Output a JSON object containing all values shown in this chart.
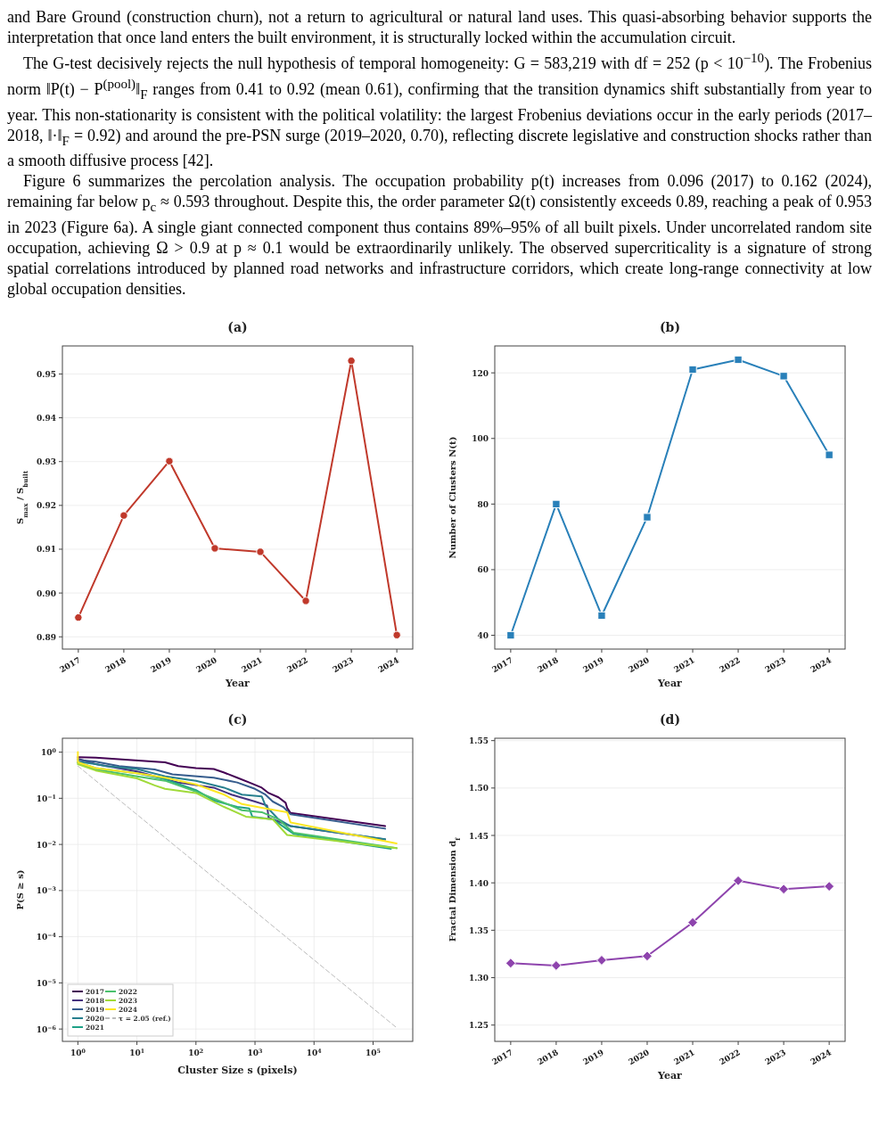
{
  "chart_data": [
    {
      "type": "other",
      "annotations": [
        "and Bare Ground (construction churn), not a return to agricultural or natural land uses. This quasi-absorbing behavior supports the interpretation that once land enters the built environment, it is structurally locked within the accumulation circuit.",
        "The G-test decisively rejects the null hypothesis of temporal homogeneity: G = 583,219 with df = 252 (p < 10$^{−10}$). The Frobenius norm ‖P(t) − P$^{(pool)}$‖$_{F}$ ranges from 0.41 to 0.92 (mean 0.61), confirming that the transition dynamics shift substantially from year to year. This non-stationarity is consistent with the political volatility: the largest Frobenius deviations occur in the early periods (2017–2018, ‖·‖$_{F}$ = 0.92) and around the pre-PSN surge (2019–2020, 0.70), reflecting discrete legislative and construction shocks rather than a smooth diffusive process [42].",
        "Figure 6 summarizes the percolation analysis. The occupation probability p(t) increases from 0.096 (2017) to 0.162 (2024), remaining far below p$_{c}$ ≈ 0.593 throughout. Despite this, the order parameter Ω(t) consistently exceeds 0.89, reaching a peak of 0.953 in 2023 (Figure 6a). A single giant connected component thus contains 89%–95% of all built pixels. Under uncorrelated random site occupation, achieving Ω > 0.9 at p ≈ 0.1 would be extraordinarily unlikely. The observed supercriticality is a signature of strong spatial correlations introduced by planned road networks and infrastructure corridors, which create long-range connectivity at low global occupation densities."
      ]
    },
    {
      "type": "line",
      "title": "(a)",
      "xlabel": "Year",
      "ylabel": "S$_{max}$ / S$_{built}$",
      "categories": [
        "2017",
        "2018",
        "2019",
        "2020",
        "2021",
        "2022",
        "2023",
        "2024"
      ],
      "series": [
        {
          "color": "#c0392b",
          "values": [
            0.8944,
            0.9177,
            0.9301,
            0.9102,
            0.9094,
            0.8982,
            0.953,
            0.8904
          ]
        }
      ],
      "ylim": [
        0.8872,
        0.9564
      ],
      "yticks": [
        {
          "value": 0.89,
          "label": "0.89"
        },
        {
          "value": 0.9,
          "label": "0.90"
        },
        {
          "value": 0.91,
          "label": "0.91"
        },
        {
          "value": 0.92,
          "label": "0.92"
        },
        {
          "value": 0.93,
          "label": "0.93"
        },
        {
          "value": 0.94,
          "label": "0.94"
        },
        {
          "value": 0.95,
          "label": "0.95"
        }
      ],
      "grid": "y",
      "marker": "circle",
      "legend": false
    },
    {
      "type": "line",
      "title": "(b)",
      "xlabel": "Year",
      "ylabel": "Number of Clusters  N(t)",
      "categories": [
        "2017",
        "2018",
        "2019",
        "2020",
        "2021",
        "2022",
        "2023",
        "2024"
      ],
      "series": [
        {
          "color": "#2980b9",
          "values": [
            40,
            80,
            46,
            76,
            121,
            124,
            119,
            95
          ]
        }
      ],
      "ylim": [
        35.8,
        128.2
      ],
      "yticks": [
        40,
        60,
        80,
        100,
        120
      ],
      "grid": "y",
      "marker": "square",
      "legend": false
    },
    {
      "type": "line",
      "title": "(c)",
      "xlabel": "Cluster Size  s  (pixels)",
      "ylabel": "P(S ≥ s)",
      "log": "xy",
      "xlim": [
        0.547,
        470000
      ],
      "ylim": [
        5.4e-07,
        2.0
      ],
      "xticks": [
        {
          "value": 1,
          "label": "10$^{0}$"
        },
        {
          "value": 10,
          "label": "10$^{1}$"
        },
        {
          "value": 100,
          "label": "10$^{2}$"
        },
        {
          "value": 1000,
          "label": "10$^{3}$"
        },
        {
          "value": 10000,
          "label": "10$^{4}$"
        },
        {
          "value": 100000,
          "label": "10$^{5}$"
        }
      ],
      "yticks": [
        {
          "value": 1e-06,
          "label": "10$^{−6}$"
        },
        {
          "value": 1e-05,
          "label": "10$^{−5}$"
        },
        {
          "value": 0.0001,
          "label": "10$^{−4}$"
        },
        {
          "value": 0.001,
          "label": "10$^{−3}$"
        },
        {
          "value": 0.01,
          "label": "10$^{−2}$"
        },
        {
          "value": 0.1,
          "label": "10$^{−1}$"
        },
        {
          "value": 1,
          "label": "10$^{0}$"
        }
      ],
      "grid": true,
      "marker": "none",
      "legend": "bottom left",
      "series": [
        {
          "name": "2017",
          "color": "#440154",
          "x": [
            1,
            2,
            20,
            30,
            50,
            100,
            200,
            300,
            500,
            800,
            1300,
            1700,
            2500,
            3300,
            3500,
            4000,
            160000
          ],
          "values": [
            0.78,
            0.76,
            0.62,
            0.6,
            0.5,
            0.45,
            0.43,
            0.36,
            0.28,
            0.22,
            0.17,
            0.13,
            0.105,
            0.08,
            0.062,
            0.048,
            0.025
          ]
        },
        {
          "name": "2018",
          "color": "#46327e",
          "x": [
            1,
            2,
            10,
            50,
            200,
            400,
            1000,
            1600,
            1700,
            4000,
            160000
          ],
          "values": [
            0.72,
            0.55,
            0.38,
            0.22,
            0.17,
            0.12,
            0.085,
            0.07,
            0.038,
            0.025,
            0.0128
          ]
        },
        {
          "name": "2019",
          "color": "#365c8d",
          "x": [
            1,
            2,
            5,
            20,
            40,
            200,
            500,
            1000,
            1500,
            2000,
            3000,
            4000,
            160000
          ],
          "values": [
            0.68,
            0.62,
            0.5,
            0.42,
            0.33,
            0.28,
            0.22,
            0.16,
            0.12,
            0.085,
            0.065,
            0.045,
            0.022
          ]
        },
        {
          "name": "2020",
          "color": "#277f8e",
          "x": [
            1,
            2,
            3,
            10,
            30,
            100,
            300,
            600,
            1300,
            1500,
            2500,
            4000,
            160000
          ],
          "values": [
            0.62,
            0.55,
            0.5,
            0.43,
            0.3,
            0.24,
            0.17,
            0.12,
            0.11,
            0.07,
            0.035,
            0.025,
            0.013
          ]
        },
        {
          "name": "2021",
          "color": "#1fa187",
          "x": [
            1,
            2,
            10,
            30,
            100,
            200,
            500,
            800,
            900,
            2000,
            4500,
            200000
          ],
          "values": [
            0.6,
            0.45,
            0.35,
            0.26,
            0.15,
            0.09,
            0.065,
            0.06,
            0.04,
            0.035,
            0.017,
            0.008
          ]
        },
        {
          "name": "2022",
          "color": "#4ac16d",
          "x": [
            1,
            2,
            10,
            30,
            100,
            300,
            600,
            1300,
            2500,
            4500,
            250000
          ],
          "values": [
            0.58,
            0.42,
            0.3,
            0.24,
            0.14,
            0.08,
            0.055,
            0.05,
            0.035,
            0.018,
            0.0083
          ]
        },
        {
          "name": "2023",
          "color": "#a0da39",
          "x": [
            1,
            2,
            10,
            20,
            30,
            100,
            300,
            700,
            2000,
            3500,
            250000
          ],
          "values": [
            0.55,
            0.4,
            0.27,
            0.19,
            0.16,
            0.13,
            0.065,
            0.04,
            0.035,
            0.016,
            0.0083
          ]
        },
        {
          "name": "2024",
          "color": "#fde725",
          "x": [
            1,
            1,
            2,
            10,
            30,
            100,
            300,
            600,
            1500,
            3500,
            4000,
            250000
          ],
          "values": [
            1.0,
            0.6,
            0.45,
            0.35,
            0.28,
            0.2,
            0.12,
            0.075,
            0.06,
            0.05,
            0.03,
            0.0105
          ]
        },
        {
          "name": "τ = 2.05 (ref.)",
          "color": "#bbbbbb",
          "line_style": "dashed",
          "x": [
            1,
            250000
          ],
          "values": [
            0.5,
            1.07e-06
          ]
        }
      ]
    },
    {
      "type": "line",
      "title": "(d)",
      "xlabel": "Year",
      "ylabel": "Fractal Dimension  d$_{f}$",
      "categories": [
        "2017",
        "2018",
        "2019",
        "2020",
        "2021",
        "2022",
        "2023",
        "2024"
      ],
      "series": [
        {
          "color": "#8e44ad",
          "values": [
            1.3153,
            1.3128,
            1.3184,
            1.3228,
            1.3581,
            1.4022,
            1.3934,
            1.3963
          ]
        }
      ],
      "ylim": [
        1.2328,
        1.5525
      ],
      "yticks": [
        {
          "value": 1.25,
          "label": "1.25"
        },
        {
          "value": 1.3,
          "label": "1.30"
        },
        {
          "value": 1.35,
          "label": "1.35"
        },
        {
          "value": 1.4,
          "label": "1.40"
        },
        {
          "value": 1.45,
          "label": "1.45"
        },
        {
          "value": 1.5,
          "label": "1.50"
        },
        {
          "value": 1.55,
          "label": "1.55"
        }
      ],
      "grid": "y",
      "marker": "diamond",
      "legend": false
    }
  ]
}
